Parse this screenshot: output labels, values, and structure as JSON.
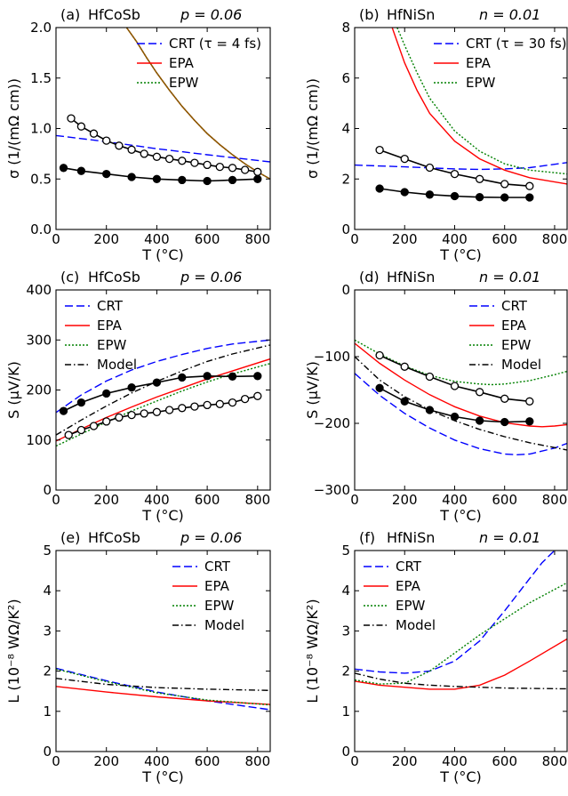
{
  "figure": {
    "colors": {
      "CRT": "#0000ff",
      "EPA": "#ff0000",
      "EPW": "#008000",
      "Model": "#000000",
      "Experiment": "#000000",
      "Overlap": "#8b5a00"
    }
  },
  "chart_data": [
    {
      "id": "a",
      "type": "line",
      "panel_label": "(a)",
      "material": "HfCoSb",
      "carrier": "p = 0.06",
      "xlabel": "T (°C)",
      "ylabel": "σ (1/(mΩ cm))",
      "xlim": [
        0,
        850
      ],
      "ylim": [
        0,
        2.0
      ],
      "xticks": [
        0,
        200,
        400,
        600,
        800
      ],
      "yticks": [
        0.0,
        0.5,
        1.0,
        1.5,
        2.0
      ],
      "ytick_labels": [
        "0.0",
        "0.5",
        "1.0",
        "1.5",
        "2.0"
      ],
      "legend_position": "upper-right",
      "series": [
        {
          "name": "CRT (τ = 4 fs)",
          "style": "dashed",
          "color": "#0000ff",
          "x": [
            0,
            200,
            400,
            600,
            850
          ],
          "y": [
            0.93,
            0.87,
            0.8,
            0.74,
            0.67
          ]
        },
        {
          "name": "EPA",
          "style": "solid",
          "color": "#ff0000",
          "x": [
            280,
            320,
            360,
            400,
            450,
            500,
            550,
            600,
            650,
            700,
            750,
            800,
            850
          ],
          "y": [
            2.0,
            1.86,
            1.7,
            1.55,
            1.38,
            1.22,
            1.08,
            0.95,
            0.84,
            0.74,
            0.65,
            0.57,
            0.5
          ]
        },
        {
          "name": "EPW",
          "style": "dotted",
          "color": "#008000",
          "x": [
            280,
            320,
            360,
            400,
            450,
            500,
            550,
            600,
            650,
            700,
            750,
            800,
            850
          ],
          "y": [
            2.0,
            1.86,
            1.7,
            1.55,
            1.38,
            1.22,
            1.08,
            0.95,
            0.84,
            0.74,
            0.65,
            0.57,
            0.5
          ]
        },
        {
          "legend": false,
          "style": "solid",
          "color": "#8b5a00",
          "x": [
            280,
            320,
            360,
            400,
            450,
            500,
            550,
            600,
            650,
            700,
            750,
            800,
            850
          ],
          "y": [
            2.0,
            1.86,
            1.7,
            1.55,
            1.38,
            1.22,
            1.08,
            0.95,
            0.84,
            0.74,
            0.65,
            0.57,
            0.5
          ]
        },
        {
          "legend": false,
          "style": "line-open-markers",
          "color": "#000000",
          "x": [
            60,
            100,
            150,
            200,
            250,
            300,
            350,
            400,
            450,
            500,
            550,
            600,
            650,
            700,
            750,
            800
          ],
          "y": [
            1.1,
            1.02,
            0.95,
            0.88,
            0.83,
            0.79,
            0.75,
            0.72,
            0.7,
            0.68,
            0.66,
            0.64,
            0.62,
            0.61,
            0.59,
            0.57
          ]
        },
        {
          "legend": false,
          "style": "line-filled-markers",
          "color": "#000000",
          "x": [
            30,
            100,
            200,
            300,
            400,
            500,
            600,
            700,
            800
          ],
          "y": [
            0.61,
            0.58,
            0.55,
            0.52,
            0.5,
            0.49,
            0.48,
            0.49,
            0.5
          ]
        }
      ]
    },
    {
      "id": "b",
      "type": "line",
      "panel_label": "(b)",
      "material": "HfNiSn",
      "carrier": "n = 0.01",
      "xlabel": "T (°C)",
      "ylabel": "σ (1/(mΩ cm))",
      "xlim": [
        0,
        850
      ],
      "ylim": [
        0,
        8
      ],
      "xticks": [
        0,
        200,
        400,
        600,
        800
      ],
      "yticks": [
        0,
        2,
        4,
        6,
        8
      ],
      "ytick_labels": [
        "0",
        "2",
        "4",
        "6",
        "8"
      ],
      "legend_position": "upper-right",
      "series": [
        {
          "name": "CRT (τ = 30 fs)",
          "style": "dashed",
          "color": "#0000ff",
          "x": [
            0,
            200,
            400,
            500,
            600,
            700,
            850
          ],
          "y": [
            2.55,
            2.48,
            2.4,
            2.38,
            2.4,
            2.45,
            2.65
          ]
        },
        {
          "name": "EPA",
          "style": "solid",
          "color": "#ff0000",
          "x": [
            150,
            200,
            250,
            300,
            400,
            500,
            600,
            700,
            850
          ],
          "y": [
            8.0,
            6.6,
            5.5,
            4.6,
            3.5,
            2.8,
            2.35,
            2.05,
            1.8
          ]
        },
        {
          "name": "EPW",
          "style": "dotted",
          "color": "#008000",
          "x": [
            170,
            200,
            250,
            300,
            400,
            500,
            600,
            700,
            850
          ],
          "y": [
            8.0,
            7.3,
            6.2,
            5.2,
            3.9,
            3.1,
            2.6,
            2.35,
            2.2
          ]
        },
        {
          "legend": false,
          "style": "line-open-markers",
          "color": "#000000",
          "x": [
            100,
            200,
            300,
            400,
            500,
            600,
            700
          ],
          "y": [
            3.15,
            2.8,
            2.45,
            2.2,
            2.0,
            1.8,
            1.72
          ]
        },
        {
          "legend": false,
          "style": "line-filled-markers",
          "color": "#000000",
          "x": [
            100,
            200,
            300,
            400,
            500,
            600,
            700
          ],
          "y": [
            1.62,
            1.48,
            1.38,
            1.32,
            1.28,
            1.27,
            1.27
          ]
        }
      ]
    },
    {
      "id": "c",
      "type": "line",
      "panel_label": "(c)",
      "material": "HfCoSb",
      "carrier": "p = 0.06",
      "xlabel": "T (°C)",
      "ylabel": "S (μV/K)",
      "xlim": [
        0,
        850
      ],
      "ylim": [
        0,
        400
      ],
      "xticks": [
        0,
        200,
        400,
        600,
        800
      ],
      "yticks": [
        0,
        100,
        200,
        300,
        400
      ],
      "ytick_labels": [
        "0",
        "100",
        "200",
        "300",
        "400"
      ],
      "legend_position": "upper-left",
      "series": [
        {
          "name": "CRT",
          "style": "dashed",
          "color": "#0000ff",
          "x": [
            0,
            100,
            200,
            300,
            400,
            500,
            600,
            700,
            850
          ],
          "y": [
            155,
            190,
            218,
            240,
            257,
            271,
            283,
            292,
            300
          ]
        },
        {
          "name": "EPA",
          "style": "solid",
          "color": "#ff0000",
          "x": [
            0,
            100,
            200,
            300,
            400,
            500,
            600,
            700,
            850
          ],
          "y": [
            98,
            122,
            145,
            166,
            186,
            204,
            222,
            238,
            262
          ]
        },
        {
          "name": "EPW",
          "style": "dotted",
          "color": "#008000",
          "x": [
            0,
            100,
            200,
            300,
            400,
            500,
            600,
            700,
            850
          ],
          "y": [
            88,
            112,
            136,
            158,
            178,
            198,
            216,
            232,
            253
          ]
        },
        {
          "name": "Model",
          "style": "dashdot",
          "color": "#000000",
          "x": [
            0,
            100,
            200,
            300,
            400,
            500,
            600,
            700,
            850
          ],
          "y": [
            110,
            140,
            168,
            194,
            217,
            238,
            257,
            272,
            290
          ]
        },
        {
          "legend": false,
          "style": "line-filled-markers",
          "color": "#000000",
          "x": [
            30,
            100,
            200,
            300,
            400,
            500,
            600,
            700,
            800
          ],
          "y": [
            158,
            175,
            193,
            205,
            215,
            225,
            228,
            227,
            228
          ]
        },
        {
          "legend": false,
          "style": "line-open-markers",
          "color": "#000000",
          "x": [
            50,
            100,
            150,
            200,
            250,
            300,
            350,
            400,
            450,
            500,
            550,
            600,
            650,
            700,
            750,
            800
          ],
          "y": [
            110,
            120,
            128,
            137,
            145,
            150,
            153,
            156,
            160,
            164,
            167,
            170,
            172,
            175,
            182,
            188
          ]
        }
      ]
    },
    {
      "id": "d",
      "type": "line",
      "panel_label": "(d)",
      "material": "HfNiSn",
      "carrier": "n = 0.01",
      "xlabel": "T (°C)",
      "ylabel": "S (μV/K)",
      "xlim": [
        0,
        850
      ],
      "ylim": [
        -300,
        0
      ],
      "xticks": [
        0,
        200,
        400,
        600,
        800
      ],
      "yticks": [
        -300,
        -200,
        -100,
        0
      ],
      "ytick_labels": [
        "−300",
        "−200",
        "−100",
        "0"
      ],
      "legend_position": "upper-right",
      "series": [
        {
          "name": "CRT",
          "style": "dashed",
          "color": "#0000ff",
          "x": [
            0,
            100,
            200,
            300,
            400,
            500,
            600,
            650,
            700,
            800,
            850
          ],
          "y": [
            -125,
            -158,
            -185,
            -207,
            -225,
            -238,
            -246,
            -247,
            -246,
            -237,
            -230
          ]
        },
        {
          "name": "EPA",
          "style": "solid",
          "color": "#ff0000",
          "x": [
            0,
            100,
            200,
            300,
            400,
            500,
            600,
            700,
            750,
            800,
            850
          ],
          "y": [
            -80,
            -110,
            -135,
            -157,
            -175,
            -189,
            -199,
            -204,
            -205,
            -204,
            -202
          ]
        },
        {
          "name": "EPW",
          "style": "dotted",
          "color": "#008000",
          "x": [
            0,
            100,
            200,
            300,
            400,
            500,
            550,
            600,
            700,
            800,
            850
          ],
          "y": [
            -75,
            -96,
            -114,
            -128,
            -137,
            -141,
            -142,
            -141,
            -136,
            -127,
            -122
          ]
        },
        {
          "name": "Model",
          "style": "dashdot",
          "color": "#000000",
          "x": [
            0,
            100,
            200,
            300,
            400,
            500,
            600,
            700,
            850
          ],
          "y": [
            -100,
            -135,
            -160,
            -180,
            -196,
            -209,
            -220,
            -229,
            -240
          ]
        },
        {
          "legend": false,
          "style": "line-open-markers",
          "color": "#000000",
          "x": [
            100,
            200,
            300,
            400,
            500,
            600,
            700
          ],
          "y": [
            -98,
            -115,
            -130,
            -144,
            -153,
            -163,
            -167
          ]
        },
        {
          "legend": false,
          "style": "line-filled-markers",
          "color": "#000000",
          "x": [
            100,
            200,
            300,
            400,
            500,
            600,
            700
          ],
          "y": [
            -147,
            -167,
            -180,
            -190,
            -196,
            -198,
            -197
          ]
        }
      ]
    },
    {
      "id": "e",
      "type": "line",
      "panel_label": "(e)",
      "material": "HfCoSb",
      "carrier": "p = 0.06",
      "xlabel": "T (°C)",
      "ylabel": "L (10⁻⁸ WΩ/K²)",
      "xlim": [
        0,
        850
      ],
      "ylim": [
        0,
        5
      ],
      "xticks": [
        0,
        200,
        400,
        600,
        800
      ],
      "yticks": [
        0,
        1,
        2,
        3,
        4,
        5
      ],
      "ytick_labels": [
        "0",
        "1",
        "2",
        "3",
        "4",
        "5"
      ],
      "legend_position": "upper-right",
      "series": [
        {
          "name": "CRT",
          "style": "dashed",
          "color": "#0000ff",
          "x": [
            0,
            200,
            400,
            600,
            850
          ],
          "y": [
            2.07,
            1.76,
            1.48,
            1.26,
            1.04
          ]
        },
        {
          "name": "EPA",
          "style": "solid",
          "color": "#ff0000",
          "x": [
            0,
            200,
            400,
            600,
            850
          ],
          "y": [
            1.62,
            1.48,
            1.36,
            1.26,
            1.17
          ]
        },
        {
          "name": "EPW",
          "style": "dotted",
          "color": "#008000",
          "x": [
            0,
            200,
            400,
            600,
            850
          ],
          "y": [
            2.05,
            1.74,
            1.46,
            1.28,
            1.16
          ]
        },
        {
          "name": "Model",
          "style": "dashdot",
          "color": "#000000",
          "x": [
            0,
            200,
            400,
            600,
            850
          ],
          "y": [
            1.82,
            1.67,
            1.59,
            1.55,
            1.52
          ]
        }
      ]
    },
    {
      "id": "f",
      "type": "line",
      "panel_label": "(f)",
      "material": "HfNiSn",
      "carrier": "n = 0.01",
      "xlabel": "T (°C)",
      "ylabel": "L (10⁻⁸ WΩ/K²)",
      "xlim": [
        0,
        850
      ],
      "ylim": [
        0,
        5
      ],
      "xticks": [
        0,
        200,
        400,
        600,
        800
      ],
      "yticks": [
        0,
        1,
        2,
        3,
        4,
        5
      ],
      "ytick_labels": [
        "0",
        "1",
        "2",
        "3",
        "4",
        "5"
      ],
      "legend_position": "upper-left",
      "series": [
        {
          "name": "CRT",
          "style": "dashed",
          "color": "#0000ff",
          "x": [
            0,
            100,
            200,
            300,
            400,
            500,
            600,
            700,
            750,
            800
          ],
          "y": [
            2.05,
            1.98,
            1.95,
            2.0,
            2.25,
            2.75,
            3.5,
            4.3,
            4.7,
            5.0
          ]
        },
        {
          "name": "EPA",
          "style": "solid",
          "color": "#ff0000",
          "x": [
            0,
            100,
            200,
            300,
            400,
            500,
            600,
            700,
            850
          ],
          "y": [
            1.75,
            1.65,
            1.6,
            1.55,
            1.55,
            1.65,
            1.9,
            2.25,
            2.8
          ]
        },
        {
          "name": "EPW",
          "style": "dotted",
          "color": "#008000",
          "x": [
            0,
            100,
            200,
            300,
            400,
            500,
            600,
            700,
            850
          ],
          "y": [
            1.78,
            1.68,
            1.7,
            2.0,
            2.45,
            2.9,
            3.3,
            3.7,
            4.2
          ]
        },
        {
          "name": "Model",
          "style": "dashdot",
          "color": "#000000",
          "x": [
            0,
            100,
            200,
            300,
            400,
            500,
            600,
            700,
            850
          ],
          "y": [
            1.95,
            1.8,
            1.7,
            1.65,
            1.62,
            1.6,
            1.58,
            1.57,
            1.56
          ]
        }
      ]
    }
  ]
}
